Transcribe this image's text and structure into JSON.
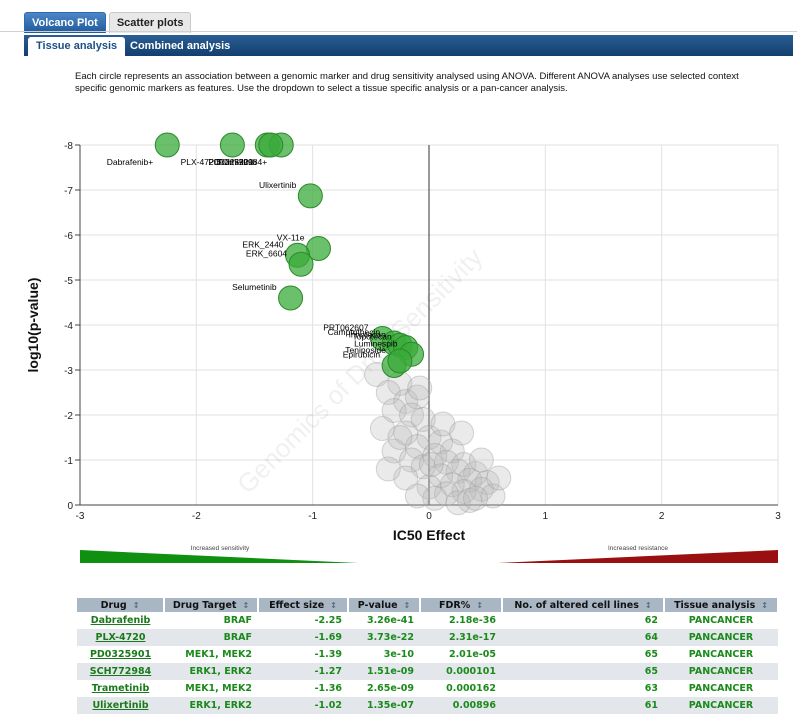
{
  "top_tabs": [
    {
      "label": "Volcano Plot",
      "active": true
    },
    {
      "label": "Scatter plots",
      "active": false
    }
  ],
  "sub_tabs": [
    {
      "label": "Tissue analysis",
      "active": true
    },
    {
      "label": "Combined analysis",
      "active": false
    }
  ],
  "description": "Each circle represents an association between a genomic marker and drug sensitivity analysed using ANOVA. Different ANOVA analyses use selected context specific genomic markers as features. Use the dropdown to select a tissue specific analysis or a pan-cancer analysis.",
  "watermark": "Genomics of Drug Sensitivity",
  "legend_sensitivity": "Increased sensitivity",
  "legend_resistance": "Increased resistance",
  "colors": {
    "significant": "#3aab3a",
    "nonsignificant": "#bbbbbb",
    "sensitivity": "#109010",
    "resistance": "#9a1010"
  },
  "chart_data": {
    "type": "scatter",
    "xlabel": "IC50 Effect",
    "ylabel": "log10(p-value)",
    "xlim": [
      -3,
      3
    ],
    "ylim": [
      0,
      -8
    ],
    "xticks": [
      "-3",
      "-2",
      "-1",
      "0",
      "1",
      "2",
      "3"
    ],
    "yticks": [
      "0",
      "-1",
      "-2",
      "-3",
      "-4",
      "-5",
      "-6",
      "-7",
      "-8"
    ],
    "labeled_points": [
      {
        "label": "Dabrafenib+",
        "x": -2.25,
        "y": -8.0
      },
      {
        "label": "PLX-4720",
        "x": -1.69,
        "y": -8.0
      },
      {
        "label": "PD0325901",
        "x": -1.39,
        "y": -8.0
      },
      {
        "label": "SCH772984+",
        "x": -1.27,
        "y": -8.0
      },
      {
        "label": "Trametinib",
        "x": -1.36,
        "y": -8.0
      },
      {
        "label": "Ulixertinib",
        "x": -1.02,
        "y": -6.87
      },
      {
        "label": "VX-11e",
        "x": -0.95,
        "y": -5.7
      },
      {
        "label": "ERK_2440",
        "x": -1.13,
        "y": -5.55
      },
      {
        "label": "ERK_6604",
        "x": -1.1,
        "y": -5.35
      },
      {
        "label": "Selumetinib",
        "x": -1.19,
        "y": -4.6
      },
      {
        "label": "PRT062607",
        "x": -0.4,
        "y": -3.7
      },
      {
        "label": "Camptothecin",
        "x": -0.3,
        "y": -3.6
      },
      {
        "label": "Irinotecan",
        "x": -0.25,
        "y": -3.55
      },
      {
        "label": "Topotecan",
        "x": -0.2,
        "y": -3.5
      },
      {
        "label": "Luminespib",
        "x": -0.15,
        "y": -3.35
      },
      {
        "label": "Epirubicin",
        "x": -0.3,
        "y": -3.1
      },
      {
        "label": "Teniposide",
        "x": -0.25,
        "y": -3.2
      }
    ],
    "background_points": [
      [
        -0.45,
        -2.9
      ],
      [
        -0.25,
        -2.7
      ],
      [
        -0.35,
        -2.5
      ],
      [
        -0.2,
        -2.3
      ],
      [
        -0.1,
        -2.4
      ],
      [
        -0.3,
        -2.1
      ],
      [
        -0.15,
        -2.0
      ],
      [
        -0.05,
        -1.9
      ],
      [
        -0.4,
        -1.7
      ],
      [
        -0.2,
        -1.6
      ],
      [
        0.0,
        -1.5
      ],
      [
        0.1,
        -1.4
      ],
      [
        -0.1,
        -1.3
      ],
      [
        -0.3,
        -1.2
      ],
      [
        0.2,
        -1.2
      ],
      [
        0.05,
        -1.1
      ],
      [
        -0.15,
        -1.0
      ],
      [
        0.15,
        -0.95
      ],
      [
        0.3,
        -0.9
      ],
      [
        -0.05,
        -0.85
      ],
      [
        0.25,
        -0.75
      ],
      [
        0.4,
        -0.7
      ],
      [
        0.1,
        -0.65
      ],
      [
        -0.2,
        -0.6
      ],
      [
        0.35,
        -0.55
      ],
      [
        0.5,
        -0.5
      ],
      [
        0.2,
        -0.45
      ],
      [
        0.0,
        -0.4
      ],
      [
        0.45,
        -0.35
      ],
      [
        0.3,
        -0.3
      ],
      [
        0.15,
        -0.25
      ],
      [
        0.55,
        -0.2
      ],
      [
        0.05,
        -0.15
      ],
      [
        0.35,
        -0.1
      ],
      [
        0.25,
        -0.05
      ],
      [
        -0.1,
        -0.2
      ],
      [
        0.6,
        -0.6
      ],
      [
        0.45,
        -1.0
      ],
      [
        -0.25,
        -1.5
      ],
      [
        -0.35,
        -0.8
      ],
      [
        0.12,
        -1.8
      ],
      [
        -0.08,
        -2.6
      ],
      [
        0.02,
        -0.9
      ],
      [
        0.28,
        -1.6
      ],
      [
        0.4,
        -0.15
      ]
    ]
  },
  "table": {
    "columns": [
      "Drug",
      "Drug Target",
      "Effect size",
      "P-value",
      "FDR%",
      "No. of altered cell lines",
      "Tissue analysis"
    ],
    "rows": [
      [
        "Dabrafenib",
        "BRAF",
        "-2.25",
        "3.26e-41",
        "2.18e-36",
        "62",
        "PANCANCER"
      ],
      [
        "PLX-4720",
        "BRAF",
        "-1.69",
        "3.73e-22",
        "2.31e-17",
        "64",
        "PANCANCER"
      ],
      [
        "PD0325901",
        "MEK1, MEK2",
        "-1.39",
        "3e-10",
        "2.01e-05",
        "65",
        "PANCANCER"
      ],
      [
        "SCH772984",
        "ERK1, ERK2",
        "-1.27",
        "1.51e-09",
        "0.000101",
        "65",
        "PANCANCER"
      ],
      [
        "Trametinib",
        "MEK1, MEK2",
        "-1.36",
        "2.65e-09",
        "0.000162",
        "63",
        "PANCANCER"
      ],
      [
        "Ulixertinib",
        "ERK1, ERK2",
        "-1.02",
        "1.35e-07",
        "0.00896",
        "61",
        "PANCANCER"
      ]
    ]
  }
}
